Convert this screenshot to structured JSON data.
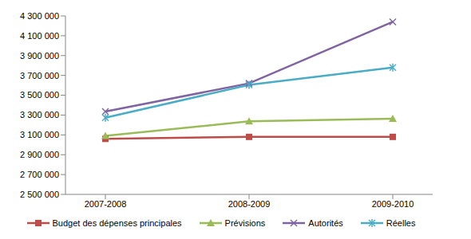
{
  "chart_data": {
    "type": "line",
    "categories": [
      "2007-2008",
      "2008-2009",
      "2009-2010"
    ],
    "series": [
      {
        "name": "Budget des dépenses principales",
        "color": "#be4b48",
        "marker": "square",
        "values": [
          3060000,
          3080000,
          3080000
        ]
      },
      {
        "name": "Prévisions",
        "color": "#9bbb59",
        "marker": "triangle",
        "values": [
          3090000,
          3237000,
          3264000
        ]
      },
      {
        "name": "Autorités",
        "color": "#8064a2",
        "marker": "x",
        "values": [
          3336000,
          3620000,
          4240000
        ]
      },
      {
        "name": "Réelles",
        "color": "#4bacc6",
        "marker": "star",
        "values": [
          3273000,
          3605000,
          3780000
        ]
      }
    ],
    "ylim": [
      2500000,
      4300000
    ],
    "yticks": [
      {
        "value": 2500000,
        "label": "2 500 000"
      },
      {
        "value": 2700000,
        "label": "2 700 000"
      },
      {
        "value": 2900000,
        "label": "2 900 000"
      },
      {
        "value": 3100000,
        "label": "3 100 000"
      },
      {
        "value": 3300000,
        "label": "3 300 000"
      },
      {
        "value": 3500000,
        "label": "3 500 000"
      },
      {
        "value": 3700000,
        "label": "3 700 000"
      },
      {
        "value": 3900000,
        "label": "3 900 000"
      },
      {
        "value": 4100000,
        "label": "4 100 000"
      },
      {
        "value": 4300000,
        "label": "4 300 000"
      }
    ],
    "grid": false,
    "legend": "bottom"
  }
}
